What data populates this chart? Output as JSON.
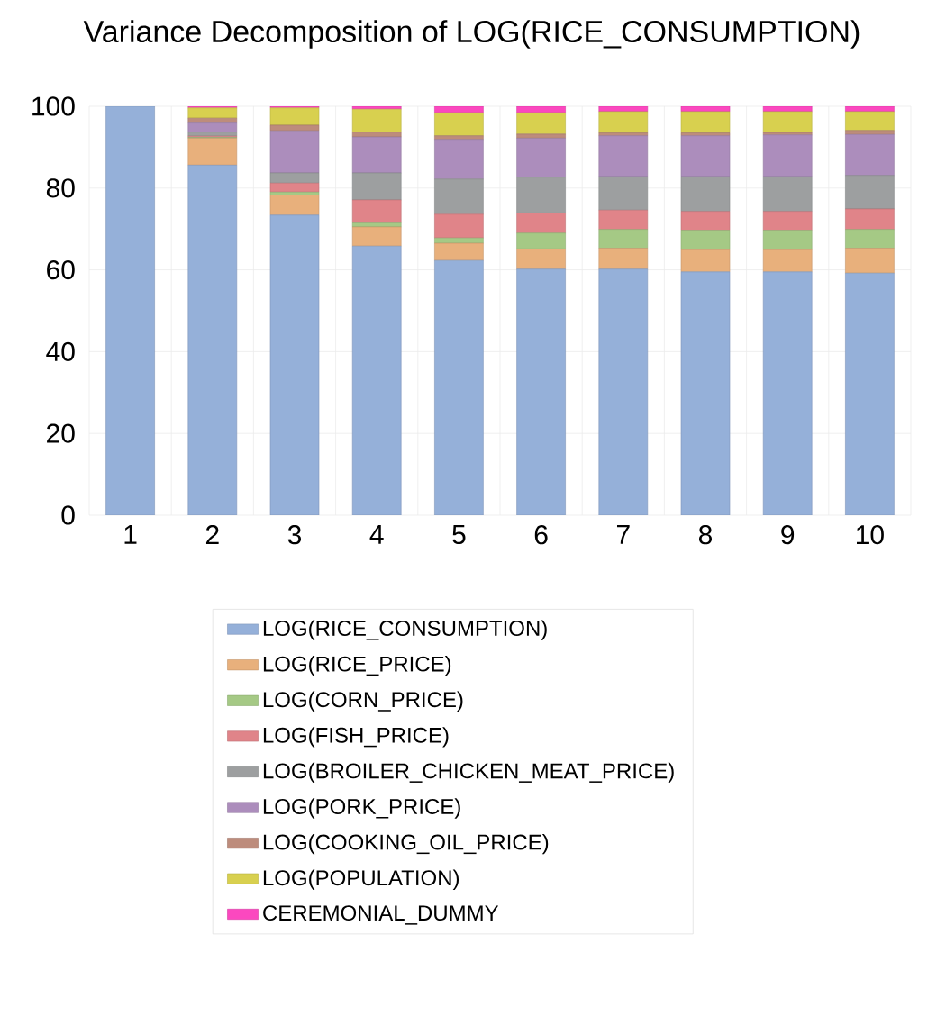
{
  "chart_data": {
    "type": "bar",
    "title": "Variance Decomposition of LOG(RICE_CONSUMPTION)",
    "stacked": true,
    "categories": [
      "1",
      "2",
      "3",
      "4",
      "5",
      "6",
      "7",
      "8",
      "9",
      "10"
    ],
    "series": [
      {
        "name": "LOG(RICE_CONSUMPTION)",
        "color": "#95b0d9",
        "values": [
          100,
          85.6,
          73.4,
          65.8,
          62.3,
          60.2,
          60.2,
          59.5,
          59.5,
          59.2
        ]
      },
      {
        "name": "LOG(RICE_PRICE)",
        "color": "#e8b07c",
        "values": [
          0,
          6.6,
          4.9,
          4.7,
          4.2,
          4.9,
          5.1,
          5.4,
          5.4,
          6.1
        ]
      },
      {
        "name": "LOG(CORN_PRICE)",
        "color": "#a5c985",
        "values": [
          0,
          0.2,
          0.7,
          1.0,
          1.3,
          3.9,
          4.6,
          4.8,
          4.8,
          4.6
        ]
      },
      {
        "name": "LOG(FISH_PRICE)",
        "color": "#e08489",
        "values": [
          0,
          0.3,
          2.2,
          5.6,
          5.8,
          4.9,
          4.7,
          4.6,
          4.6,
          5.0
        ]
      },
      {
        "name": "LOG(BROILER_CHICKEN_MEAT_PRICE)",
        "color": "#9d9fa0",
        "values": [
          0,
          1.0,
          2.5,
          6.6,
          8.6,
          8.8,
          8.2,
          8.5,
          8.5,
          8.2
        ]
      },
      {
        "name": "LOG(PORK_PRICE)",
        "color": "#ac8dbc",
        "values": [
          0,
          2.2,
          10.3,
          8.8,
          9.7,
          9.5,
          10.0,
          10.0,
          10.2,
          10.0
        ]
      },
      {
        "name": "LOG(COOKING_OIL_PRICE)",
        "color": "#bd8c7c",
        "values": [
          0,
          1.2,
          1.4,
          1.2,
          0.9,
          1.0,
          0.7,
          0.7,
          0.6,
          1.0
        ]
      },
      {
        "name": "LOG(POPULATION)",
        "color": "#d8d04f",
        "values": [
          0,
          2.5,
          4.2,
          5.6,
          5.6,
          5.2,
          5.2,
          5.2,
          5.1,
          4.6
        ]
      },
      {
        "name": "CEREMONIAL_DUMMY",
        "color": "#fb48bf",
        "values": [
          0,
          0.4,
          0.4,
          0.7,
          1.6,
          1.6,
          1.3,
          1.3,
          1.3,
          1.3
        ]
      }
    ],
    "ylim": [
      0,
      100
    ],
    "yticks": [
      0,
      20,
      40,
      60,
      80,
      100
    ],
    "grid": true,
    "legend": "bottom"
  }
}
